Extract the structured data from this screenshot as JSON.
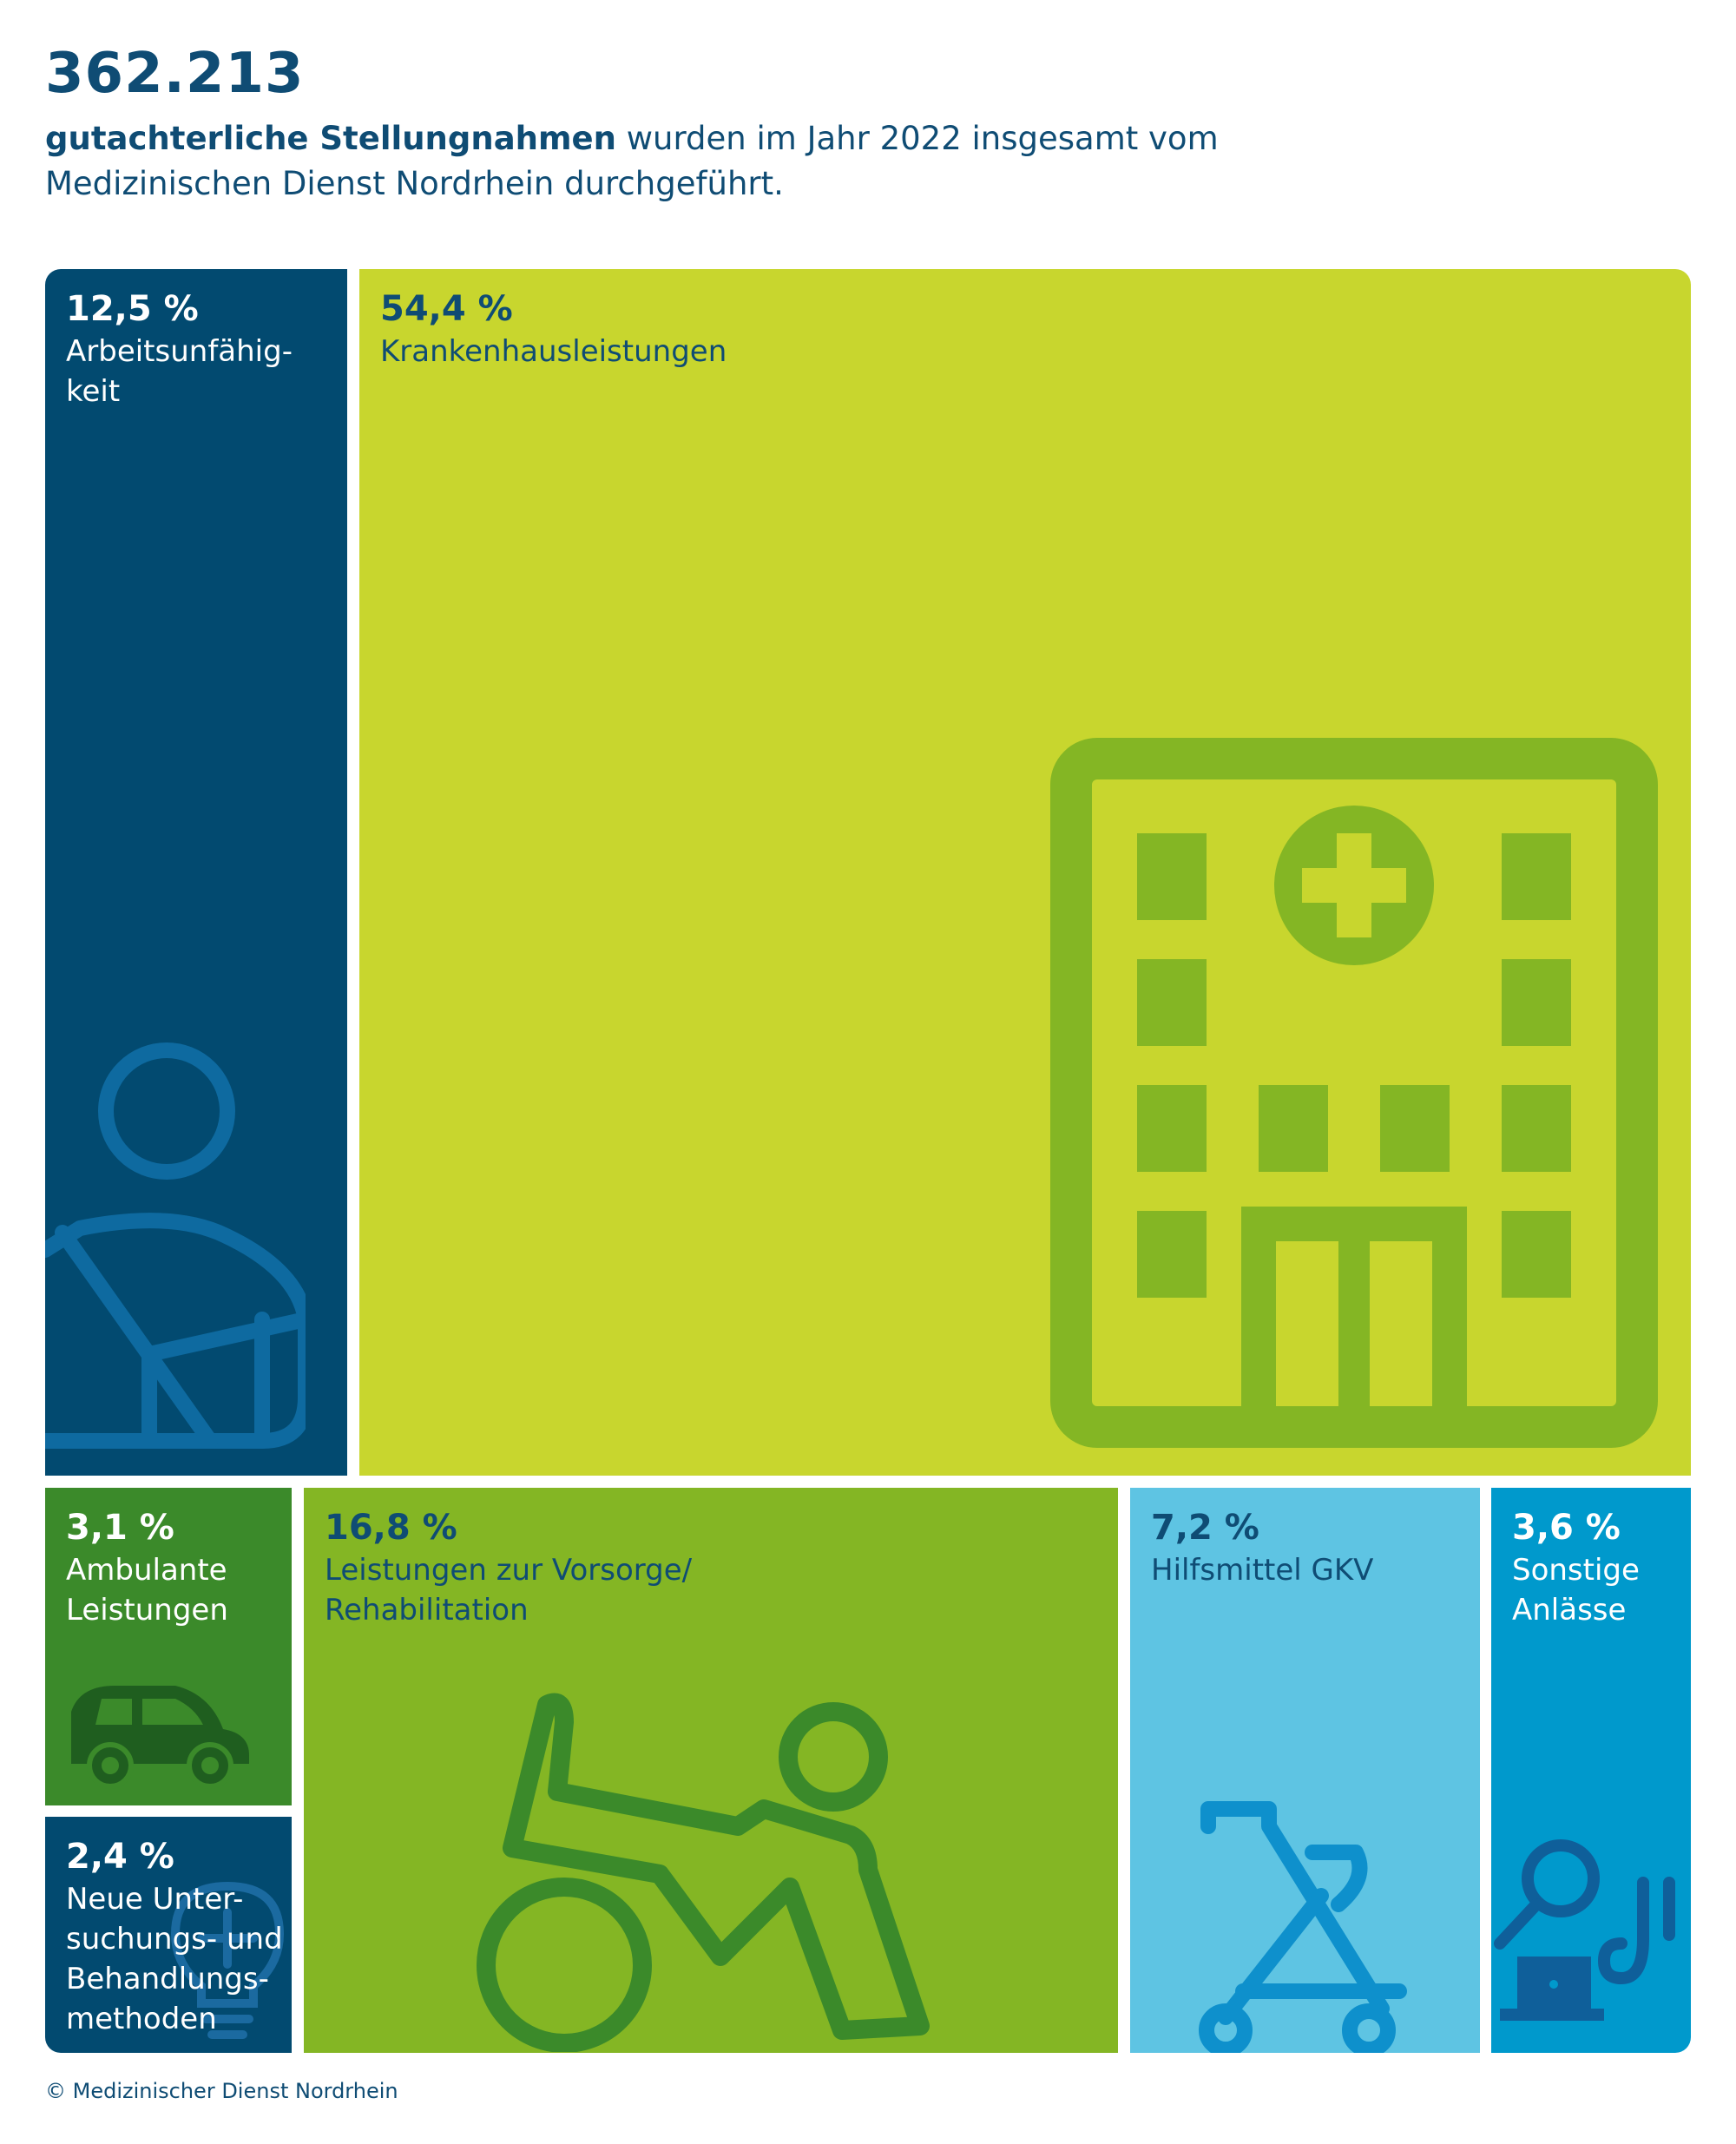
{
  "header": {
    "total": "362.213",
    "subtitle_bold": "gutachterliche Stellungnahmen",
    "subtitle_rest": " wurden im Jahr 2022 insgesamt vom",
    "subtitle_line2": "Medizinischen Dienst Nordrhein durchgeführt."
  },
  "chart_data": {
    "type": "treemap",
    "total": 362213,
    "unit": "%",
    "items": [
      {
        "label": "Arbeitsunfähigkeit",
        "value": 12.5,
        "value_text": "12,5 %",
        "label_text": "Arbeitsunfähig-\nkeit",
        "color": "#024a70",
        "pct_color": "#ffffff",
        "label_color": "#ffffff",
        "icon": "injured-arm-sling-icon"
      },
      {
        "label": "Krankenhausleistungen",
        "value": 54.4,
        "value_text": "54,4 %",
        "label_text": "Krankenhausleistungen",
        "color": "#c8d62e",
        "pct_color": "#0f4c74",
        "label_color": "#0f4c74",
        "icon": "hospital-building-icon"
      },
      {
        "label": "Ambulante Leistungen",
        "value": 3.1,
        "value_text": "3,1 %",
        "label_text": "Ambulante\nLeistungen",
        "color": "#3b8a2a",
        "pct_color": "#ffffff",
        "label_color": "#ffffff",
        "icon": "car-icon"
      },
      {
        "label": "Neue Untersuchungs- und Behandlungsmethoden",
        "value": 2.4,
        "value_text": "2,4 %",
        "label_text": "Neue Unter-\nsuchungs- und\nBehandlungs-\nmethoden",
        "color": "#024a70",
        "pct_color": "#ffffff",
        "label_color": "#ffffff",
        "icon": "lightbulb-cross-icon"
      },
      {
        "label": "Leistungen zur Vorsorge/Rehabilitation",
        "value": 16.8,
        "value_text": "16,8 %",
        "label_text": "Leistungen zur Vorsorge/\nRehabilitation",
        "color": "#84b624",
        "pct_color": "#0f4c74",
        "label_color": "#0f4c74",
        "icon": "wheelchair-rehab-icon"
      },
      {
        "label": "Hilfsmittel GKV",
        "value": 7.2,
        "value_text": "7,2 %",
        "label_text": "Hilfsmittel GKV",
        "color": "#5ec4e3",
        "pct_color": "#0f4c74",
        "label_color": "#0f4c74",
        "icon": "rollator-icon"
      },
      {
        "label": "Sonstige Anlässe",
        "value": 3.6,
        "value_text": "3,6 %",
        "label_text": "Sonstige\nAnlässe",
        "color": "#0099cc",
        "pct_color": "#ffffff",
        "label_color": "#ffffff",
        "icon": "magnifier-laptop-stethoscope-icon"
      }
    ]
  },
  "footer": {
    "copyright": "© Medizinischer Dienst Nordrhein"
  }
}
